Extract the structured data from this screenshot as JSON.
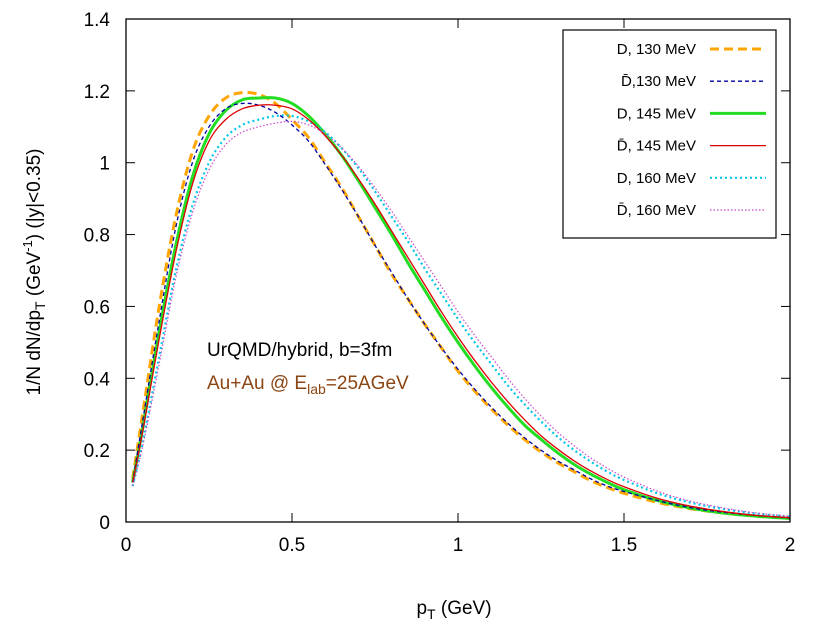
{
  "chart_data": {
    "type": "line",
    "title": "",
    "xlabel": "p_T (GeV)",
    "xlabel_parts": {
      "main": "p",
      "sub": "T",
      "rest": " (GeV)"
    },
    "ylabel": "1/N dN/dp_T (GeV^-1) (|y|<0.35)",
    "ylabel_parts": {
      "a": "1/N dN/dp",
      "sub": "T",
      "b": " (GeV",
      "sup": "-1",
      "c": ") (|y|<0.35)"
    },
    "xlim": [
      0,
      2
    ],
    "ylim": [
      0,
      1.4
    ],
    "xticks": [
      0,
      0.5,
      1,
      1.5,
      2
    ],
    "xtick_labels": [
      "0",
      "0.5",
      "1",
      "1.5",
      "2"
    ],
    "yticks": [
      0,
      0.2,
      0.4,
      0.6,
      0.8,
      1,
      1.2,
      1.4
    ],
    "ytick_labels": [
      "0",
      "0.2",
      "0.4",
      "0.6",
      "0.8",
      "1",
      "1.2",
      "1.4"
    ],
    "grid": false,
    "legend_position": "top-right",
    "annotations": {
      "line1": "UrQMD/hybrid, b=3fm",
      "line2_a": "Au+Au @ E",
      "line2_sub": "lab",
      "line2_b": "=25AGeV",
      "color": "#8b4513"
    },
    "series": [
      {
        "name": "D, 130 MeV",
        "color": "#ffa500",
        "dash": "dashed",
        "width": 3,
        "x": [
          0.02,
          0.05,
          0.1,
          0.15,
          0.2,
          0.25,
          0.3,
          0.35,
          0.4,
          0.45,
          0.5,
          0.55,
          0.6,
          0.65,
          0.7,
          0.75,
          0.8,
          0.85,
          0.9,
          0.95,
          1.0,
          1.05,
          1.1,
          1.15,
          1.2,
          1.25,
          1.3,
          1.35,
          1.4,
          1.45,
          1.5,
          1.6,
          1.7,
          1.8,
          1.9,
          2.0
        ],
        "y": [
          0.12,
          0.3,
          0.6,
          0.85,
          1.03,
          1.13,
          1.18,
          1.195,
          1.19,
          1.165,
          1.12,
          1.07,
          1.0,
          0.93,
          0.85,
          0.77,
          0.69,
          0.62,
          0.55,
          0.485,
          0.42,
          0.365,
          0.315,
          0.27,
          0.23,
          0.195,
          0.165,
          0.14,
          0.115,
          0.096,
          0.08,
          0.055,
          0.037,
          0.025,
          0.016,
          0.01
        ]
      },
      {
        "name": "D̄,130 MeV",
        "color": "#0000a0",
        "dash": "dashed-fine",
        "width": 1.3,
        "x": [
          0.02,
          0.05,
          0.1,
          0.15,
          0.2,
          0.25,
          0.3,
          0.35,
          0.4,
          0.45,
          0.5,
          0.55,
          0.6,
          0.65,
          0.7,
          0.75,
          0.8,
          0.85,
          0.9,
          0.95,
          1.0,
          1.05,
          1.1,
          1.15,
          1.2,
          1.25,
          1.3,
          1.35,
          1.4,
          1.45,
          1.5,
          1.6,
          1.7,
          1.8,
          1.9,
          2.0
        ],
        "y": [
          0.11,
          0.28,
          0.56,
          0.82,
          1.0,
          1.1,
          1.15,
          1.165,
          1.16,
          1.14,
          1.105,
          1.06,
          0.995,
          0.925,
          0.85,
          0.77,
          0.695,
          0.62,
          0.55,
          0.485,
          0.425,
          0.37,
          0.32,
          0.275,
          0.235,
          0.2,
          0.17,
          0.145,
          0.12,
          0.1,
          0.085,
          0.06,
          0.04,
          0.027,
          0.018,
          0.011
        ]
      },
      {
        "name": "D, 145 MeV",
        "color": "#22dd22",
        "dash": "solid",
        "width": 3,
        "x": [
          0.02,
          0.05,
          0.1,
          0.15,
          0.2,
          0.25,
          0.3,
          0.35,
          0.4,
          0.45,
          0.5,
          0.55,
          0.6,
          0.65,
          0.7,
          0.75,
          0.8,
          0.85,
          0.9,
          0.95,
          1.0,
          1.05,
          1.1,
          1.15,
          1.2,
          1.25,
          1.3,
          1.35,
          1.4,
          1.45,
          1.5,
          1.6,
          1.7,
          1.8,
          1.9,
          2.0
        ],
        "y": [
          0.11,
          0.26,
          0.53,
          0.77,
          0.96,
          1.08,
          1.145,
          1.175,
          1.18,
          1.18,
          1.165,
          1.13,
          1.08,
          1.02,
          0.95,
          0.875,
          0.8,
          0.72,
          0.645,
          0.57,
          0.5,
          0.435,
          0.375,
          0.32,
          0.27,
          0.23,
          0.193,
          0.16,
          0.133,
          0.11,
          0.09,
          0.06,
          0.039,
          0.025,
          0.016,
          0.01
        ]
      },
      {
        "name": "D̄, 145 MeV",
        "color": "#dd0000",
        "dash": "solid",
        "width": 1.3,
        "x": [
          0.02,
          0.05,
          0.1,
          0.15,
          0.2,
          0.25,
          0.3,
          0.35,
          0.4,
          0.45,
          0.5,
          0.55,
          0.6,
          0.65,
          0.7,
          0.75,
          0.8,
          0.85,
          0.9,
          0.95,
          1.0,
          1.05,
          1.1,
          1.15,
          1.2,
          1.25,
          1.3,
          1.35,
          1.4,
          1.45,
          1.5,
          1.6,
          1.7,
          1.8,
          1.9,
          2.0
        ],
        "y": [
          0.11,
          0.25,
          0.51,
          0.75,
          0.94,
          1.06,
          1.12,
          1.15,
          1.16,
          1.16,
          1.15,
          1.12,
          1.075,
          1.02,
          0.955,
          0.885,
          0.81,
          0.735,
          0.66,
          0.585,
          0.515,
          0.45,
          0.39,
          0.335,
          0.285,
          0.24,
          0.203,
          0.17,
          0.142,
          0.118,
          0.098,
          0.066,
          0.044,
          0.029,
          0.018,
          0.012
        ]
      },
      {
        "name": "D, 160 MeV",
        "color": "#00c8e6",
        "dash": "dotted",
        "width": 2.2,
        "x": [
          0.02,
          0.05,
          0.1,
          0.15,
          0.2,
          0.25,
          0.3,
          0.35,
          0.4,
          0.45,
          0.5,
          0.55,
          0.6,
          0.65,
          0.7,
          0.75,
          0.8,
          0.85,
          0.9,
          0.95,
          1.0,
          1.05,
          1.1,
          1.15,
          1.2,
          1.25,
          1.3,
          1.35,
          1.4,
          1.45,
          1.5,
          1.6,
          1.7,
          1.8,
          1.9,
          2.0
        ],
        "y": [
          0.1,
          0.22,
          0.46,
          0.7,
          0.88,
          1.0,
          1.07,
          1.105,
          1.12,
          1.13,
          1.13,
          1.115,
          1.085,
          1.04,
          0.985,
          0.92,
          0.85,
          0.78,
          0.705,
          0.635,
          0.565,
          0.5,
          0.44,
          0.38,
          0.328,
          0.28,
          0.237,
          0.2,
          0.168,
          0.14,
          0.117,
          0.08,
          0.054,
          0.036,
          0.023,
          0.015
        ]
      },
      {
        "name": "D̄, 160 MeV",
        "color": "#cc44cc",
        "dash": "dotted-fine",
        "width": 1.2,
        "x": [
          0.02,
          0.05,
          0.1,
          0.15,
          0.2,
          0.25,
          0.3,
          0.35,
          0.4,
          0.45,
          0.5,
          0.55,
          0.6,
          0.65,
          0.7,
          0.75,
          0.8,
          0.85,
          0.9,
          0.95,
          1.0,
          1.05,
          1.1,
          1.15,
          1.2,
          1.25,
          1.3,
          1.35,
          1.4,
          1.45,
          1.5,
          1.6,
          1.7,
          1.8,
          1.9,
          2.0
        ],
        "y": [
          0.1,
          0.21,
          0.44,
          0.68,
          0.86,
          0.98,
          1.05,
          1.085,
          1.1,
          1.11,
          1.115,
          1.105,
          1.08,
          1.04,
          0.99,
          0.93,
          0.865,
          0.795,
          0.725,
          0.655,
          0.585,
          0.52,
          0.46,
          0.4,
          0.345,
          0.295,
          0.25,
          0.212,
          0.178,
          0.15,
          0.125,
          0.086,
          0.058,
          0.039,
          0.025,
          0.016
        ]
      }
    ]
  }
}
